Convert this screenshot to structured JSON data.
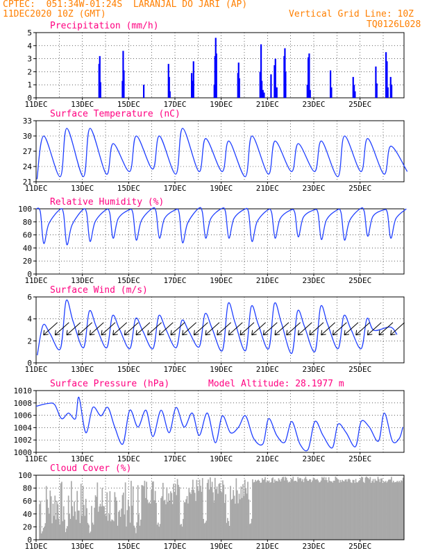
{
  "header": {
    "line1": "CPTEC:  051:34W-01:24S  LARANJAL DO JARI (AP)",
    "line2": "11DEC2020 10Z (GMT)",
    "grid_note": "Vertical Grid Line: 10Z",
    "code": "TQ0126L028"
  },
  "colors": {
    "header": "#ff7f00",
    "title": "#ff0080",
    "line": "#1f3fff",
    "precip_bar": "#0000ff",
    "cloud": "#a9a9a9",
    "grid": "#000000"
  },
  "x_ticks": [
    "11DEC",
    "13DEC",
    "15DEC",
    "17DEC",
    "19DEC",
    "21DEC",
    "23DEC",
    "25DEC"
  ],
  "chart_data": [
    {
      "id": "precip",
      "type": "bar",
      "title": "Precipitation (mm/h)",
      "ylim": [
        0,
        5
      ],
      "yticks": [
        "0",
        "1",
        "2",
        "3",
        "4",
        "5"
      ],
      "bars": [
        {
          "x": 2.72,
          "y": 2.6
        },
        {
          "x": 2.75,
          "y": 3.2
        },
        {
          "x": 2.78,
          "y": 1.2
        },
        {
          "x": 3.73,
          "y": 1.3
        },
        {
          "x": 3.76,
          "y": 3.6
        },
        {
          "x": 3.79,
          "y": 2.1
        },
        {
          "x": 4.65,
          "y": 1.0
        },
        {
          "x": 5.72,
          "y": 2.6
        },
        {
          "x": 5.75,
          "y": 1.6
        },
        {
          "x": 5.78,
          "y": 0.5
        },
        {
          "x": 6.72,
          "y": 1.9
        },
        {
          "x": 6.76,
          "y": 1.3
        },
        {
          "x": 6.8,
          "y": 2.8
        },
        {
          "x": 7.7,
          "y": 1.0
        },
        {
          "x": 7.73,
          "y": 3.2
        },
        {
          "x": 7.76,
          "y": 4.6
        },
        {
          "x": 7.79,
          "y": 3.4
        },
        {
          "x": 8.72,
          "y": 1.9
        },
        {
          "x": 8.75,
          "y": 2.7
        },
        {
          "x": 8.78,
          "y": 1.5
        },
        {
          "x": 9.68,
          "y": 2.0
        },
        {
          "x": 9.72,
          "y": 4.1
        },
        {
          "x": 9.75,
          "y": 1.3
        },
        {
          "x": 9.8,
          "y": 0.6
        },
        {
          "x": 9.85,
          "y": 0.4
        },
        {
          "x": 10.15,
          "y": 1.8
        },
        {
          "x": 10.3,
          "y": 2.5
        },
        {
          "x": 10.34,
          "y": 3.0
        },
        {
          "x": 10.4,
          "y": 0.8
        },
        {
          "x": 10.72,
          "y": 3.2
        },
        {
          "x": 10.75,
          "y": 3.8
        },
        {
          "x": 10.78,
          "y": 2.0
        },
        {
          "x": 11.72,
          "y": 1.0
        },
        {
          "x": 11.76,
          "y": 3.1
        },
        {
          "x": 11.8,
          "y": 3.4
        },
        {
          "x": 11.84,
          "y": 0.6
        },
        {
          "x": 12.72,
          "y": 2.1
        },
        {
          "x": 12.76,
          "y": 0.8
        },
        {
          "x": 13.7,
          "y": 1.6
        },
        {
          "x": 13.74,
          "y": 1.0
        },
        {
          "x": 13.78,
          "y": 0.5
        },
        {
          "x": 14.68,
          "y": 2.4
        },
        {
          "x": 14.72,
          "y": 1.1
        },
        {
          "x": 15.12,
          "y": 3.5
        },
        {
          "x": 15.16,
          "y": 2.8
        },
        {
          "x": 15.2,
          "y": 0.8
        },
        {
          "x": 15.32,
          "y": 1.6
        },
        {
          "x": 15.36,
          "y": 1.0
        }
      ]
    },
    {
      "id": "temp",
      "type": "line",
      "title": "Surface Temperature (nC)",
      "ylim": [
        21,
        33
      ],
      "yticks": [
        "21",
        "24",
        "27",
        "30",
        "33"
      ],
      "daily_min": [
        21.5,
        22.0,
        22.0,
        22.5,
        23.0,
        23.5,
        22.5,
        23.0,
        23.0,
        22.0,
        22.5,
        23.0,
        23.0,
        22.0,
        23.0,
        22.5,
        23.0
      ],
      "daily_max": [
        30.0,
        31.5,
        31.5,
        28.5,
        30.0,
        30.0,
        31.5,
        29.5,
        29.0,
        30.0,
        29.0,
        28.5,
        29.0,
        30.0,
        29.5,
        28.0
      ]
    },
    {
      "id": "rh",
      "type": "line",
      "title": "Relative Humidity (%)",
      "ylim": [
        0,
        100
      ],
      "yticks": [
        "0",
        "20",
        "40",
        "60",
        "80",
        "100"
      ],
      "daily_min": [
        47,
        45,
        50,
        55,
        52,
        55,
        48,
        55,
        55,
        50,
        55,
        57,
        53,
        52,
        58,
        55
      ],
      "daily_max": [
        100,
        98,
        98,
        98,
        98,
        100,
        98,
        100,
        100,
        99,
        98,
        98,
        98,
        98,
        100,
        98,
        100
      ]
    },
    {
      "id": "wind",
      "type": "line",
      "title": "Surface Wind (m/s)",
      "ylim": [
        0,
        7
      ],
      "yticks": [
        "0",
        "2",
        "4",
        "6"
      ],
      "daily_min": [
        0.8,
        1.5,
        1.6,
        1.6,
        1.5,
        1.5,
        1.6,
        1.7,
        1.3,
        1.3,
        1.5,
        1.0,
        1.2,
        1.5,
        1.5
      ],
      "daily_max": [
        4.0,
        6.6,
        5.5,
        5.0,
        4.7,
        5.0,
        4.5,
        5.2,
        6.3,
        6.0,
        6.3,
        5.5,
        6.0,
        5.0,
        4.7,
        3.8
      ]
    },
    {
      "id": "pres",
      "type": "line",
      "title": "Surface Pressure (hPa)",
      "subtitle": "Model Altitude: 28.1977 m",
      "ylim": [
        1000,
        1011
      ],
      "yticks": [
        "1000",
        "1002",
        "1004",
        "1006",
        "1008",
        "1010"
      ],
      "anchors": [
        [
          0,
          1008.2
        ],
        [
          0.5,
          1008.7
        ],
        [
          0.8,
          1008.5
        ],
        [
          1.1,
          1006.0
        ],
        [
          1.4,
          1007.0
        ],
        [
          1.7,
          1006.0
        ],
        [
          1.85,
          1009.8
        ],
        [
          2.15,
          1003.5
        ],
        [
          2.45,
          1008.0
        ],
        [
          2.8,
          1006.5
        ],
        [
          3.1,
          1008.0
        ],
        [
          3.4,
          1004.5
        ],
        [
          3.75,
          1001.5
        ],
        [
          4.05,
          1007.5
        ],
        [
          4.4,
          1004.5
        ],
        [
          4.75,
          1007.5
        ],
        [
          5.05,
          1002.8
        ],
        [
          5.4,
          1007.5
        ],
        [
          5.75,
          1003.5
        ],
        [
          6.05,
          1008.0
        ],
        [
          6.4,
          1004.5
        ],
        [
          6.75,
          1007.0
        ],
        [
          7.05,
          1003.0
        ],
        [
          7.4,
          1007.0
        ],
        [
          7.75,
          1001.7
        ],
        [
          8.05,
          1006.5
        ],
        [
          8.4,
          1003.5
        ],
        [
          8.75,
          1004.5
        ],
        [
          9.05,
          1006.5
        ],
        [
          9.4,
          1002.5
        ],
        [
          9.8,
          1001.5
        ],
        [
          10.05,
          1006.0
        ],
        [
          10.4,
          1003.0
        ],
        [
          10.75,
          1001.8
        ],
        [
          11.05,
          1005.5
        ],
        [
          11.4,
          1001.5
        ],
        [
          11.75,
          1000.5
        ],
        [
          12.05,
          1005.5
        ],
        [
          12.4,
          1003.0
        ],
        [
          12.8,
          1000.8
        ],
        [
          13.05,
          1005.0
        ],
        [
          13.4,
          1003.5
        ],
        [
          13.8,
          1001.0
        ],
        [
          14.05,
          1005.5
        ],
        [
          14.4,
          1004.5
        ],
        [
          14.8,
          1002.0
        ],
        [
          15.05,
          1007.0
        ],
        [
          15.4,
          1002.0
        ],
        [
          15.7,
          1002.5
        ],
        [
          15.85,
          1004.5
        ]
      ]
    },
    {
      "id": "cloud",
      "type": "bar",
      "title": "Cloud Cover (%)",
      "ylim": [
        0,
        100
      ],
      "yticks": [
        "0",
        "20",
        "40",
        "60",
        "80",
        "100"
      ]
    }
  ]
}
